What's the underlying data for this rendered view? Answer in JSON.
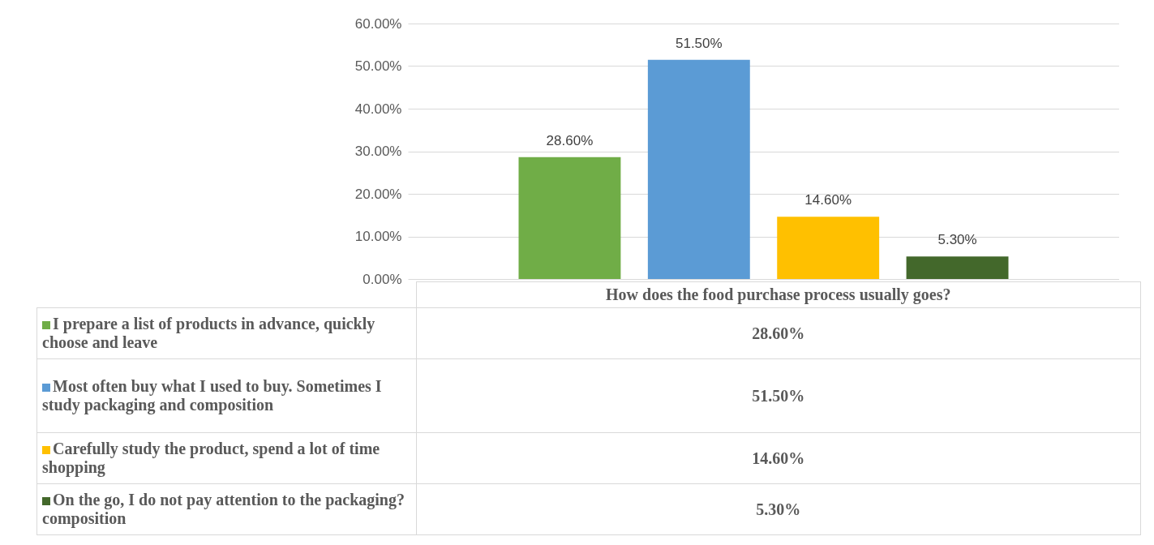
{
  "chart_data": {
    "type": "bar",
    "categories": [
      "How does the food purchase process usually goes?"
    ],
    "series": [
      {
        "name": "I prepare a list of products in advance, quickly choose and leave",
        "color": "#70ad47",
        "values": [
          28.6
        ],
        "value_labels": [
          "28.60%"
        ]
      },
      {
        "name": "Most often buy what I used to buy. Sometimes I study packaging and composition",
        "color": "#5b9bd5",
        "values": [
          51.5
        ],
        "value_labels": [
          "51.50%"
        ]
      },
      {
        "name": "Carefully study the product, spend a lot of time shopping",
        "color": "#ffc000",
        "values": [
          14.6
        ],
        "value_labels": [
          "14.60%"
        ]
      },
      {
        "name": "On the go, I do not pay attention to the packaging?composition",
        "color": "#43682b",
        "values": [
          5.3
        ],
        "value_labels": [
          "5.30%"
        ]
      }
    ],
    "ylim": [
      0,
      60
    ],
    "yticks": [
      {
        "value": 0,
        "label": "0.00%"
      },
      {
        "value": 10,
        "label": "10.00%"
      },
      {
        "value": 20,
        "label": "20.00%"
      },
      {
        "value": 30,
        "label": "30.00%"
      },
      {
        "value": 40,
        "label": "40.00%"
      },
      {
        "value": 50,
        "label": "50.00%"
      },
      {
        "value": 60,
        "label": "60.00%"
      }
    ],
    "grid": "y",
    "legend": "bottom"
  }
}
